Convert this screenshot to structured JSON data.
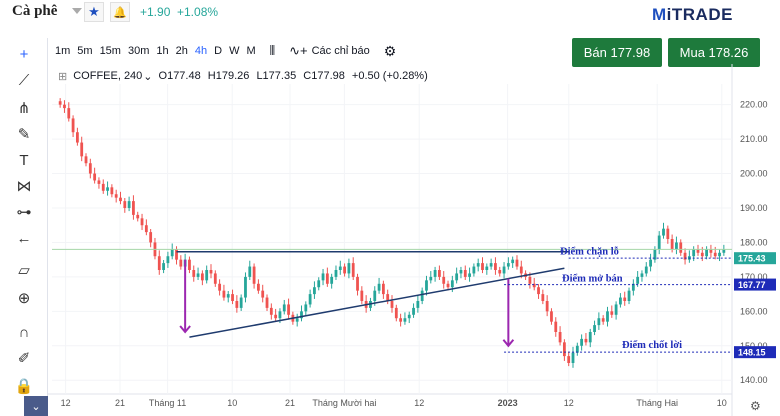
{
  "header": {
    "title": "Cà phê",
    "change_abs": "+1.90",
    "change_pct": "+1.08%",
    "logo_m": "M",
    "logo_rest": "iTRADE"
  },
  "toolbar": {
    "timeframes": [
      "1m",
      "5m",
      "15m",
      "30m",
      "1h",
      "2h",
      "4h",
      "D",
      "W",
      "M"
    ],
    "active_timeframe": "4h",
    "indicators_label": "Các chỉ báo"
  },
  "trade": {
    "sell_label": "Bán 177.98",
    "buy_label": "Mua 178.26"
  },
  "legend": {
    "symbol": "COFFEE, 240",
    "open": "O177.48",
    "high": "H179.26",
    "low": "L177.35",
    "close": "C177.98",
    "change": "+0.50 (+0.28%)"
  },
  "chart_data": {
    "type": "candlestick",
    "y_ticks": [
      140,
      150,
      160,
      170,
      180,
      190,
      200,
      210,
      220
    ],
    "ylim": [
      136,
      226
    ],
    "x_tick_labels": [
      "12",
      "21",
      "Tháng 11",
      "10",
      "21",
      "Tháng Mười hai",
      "12",
      "2023",
      "12",
      "Tháng Hai",
      "10"
    ],
    "price_tags": [
      {
        "value": 175.43,
        "label": "175.43",
        "color": "#26a69a"
      },
      {
        "value": 167.77,
        "label": "167.77",
        "color": "#1e2bb8"
      },
      {
        "value": 148.15,
        "label": "148.15",
        "color": "#1e2bb8"
      }
    ],
    "annotations": [
      {
        "label": "Điểm chặn lỗ",
        "value": 177.3
      },
      {
        "label": "Điểm mở bán",
        "value": 169.6
      },
      {
        "label": "Điểm chốt lời",
        "value": 150.2
      }
    ],
    "closes": [
      220,
      219,
      216,
      212,
      209,
      205,
      203,
      200,
      198,
      197,
      195,
      196,
      194,
      193,
      192,
      190,
      192,
      188,
      187,
      185,
      183,
      180,
      176,
      172,
      174,
      176,
      178,
      175,
      173,
      175,
      172,
      170,
      171,
      169,
      172,
      171,
      168,
      166,
      164,
      165,
      163,
      161,
      164,
      170,
      173,
      168,
      166,
      164,
      161,
      159,
      158,
      160,
      162,
      159,
      157,
      158,
      160,
      162,
      165,
      167,
      169,
      171,
      168,
      170,
      172,
      173,
      171,
      174,
      170,
      166,
      163,
      161,
      163,
      166,
      168,
      165,
      163,
      161,
      158,
      157,
      158,
      159,
      161,
      163,
      166,
      169,
      170,
      172,
      170,
      168,
      167,
      169,
      171,
      172,
      170,
      171,
      173,
      174,
      172,
      173,
      174,
      172,
      171,
      173,
      174,
      175,
      173,
      171,
      170,
      168,
      167,
      165,
      163,
      160,
      157,
      154,
      151,
      147,
      145,
      148,
      150,
      152,
      151,
      154,
      156,
      158,
      157,
      160,
      159,
      162,
      164,
      163,
      166,
      168,
      170,
      171,
      173,
      175,
      178,
      182,
      184,
      181,
      178,
      180,
      177,
      175,
      176,
      178,
      177,
      176,
      178,
      177,
      176,
      177,
      178
    ]
  }
}
